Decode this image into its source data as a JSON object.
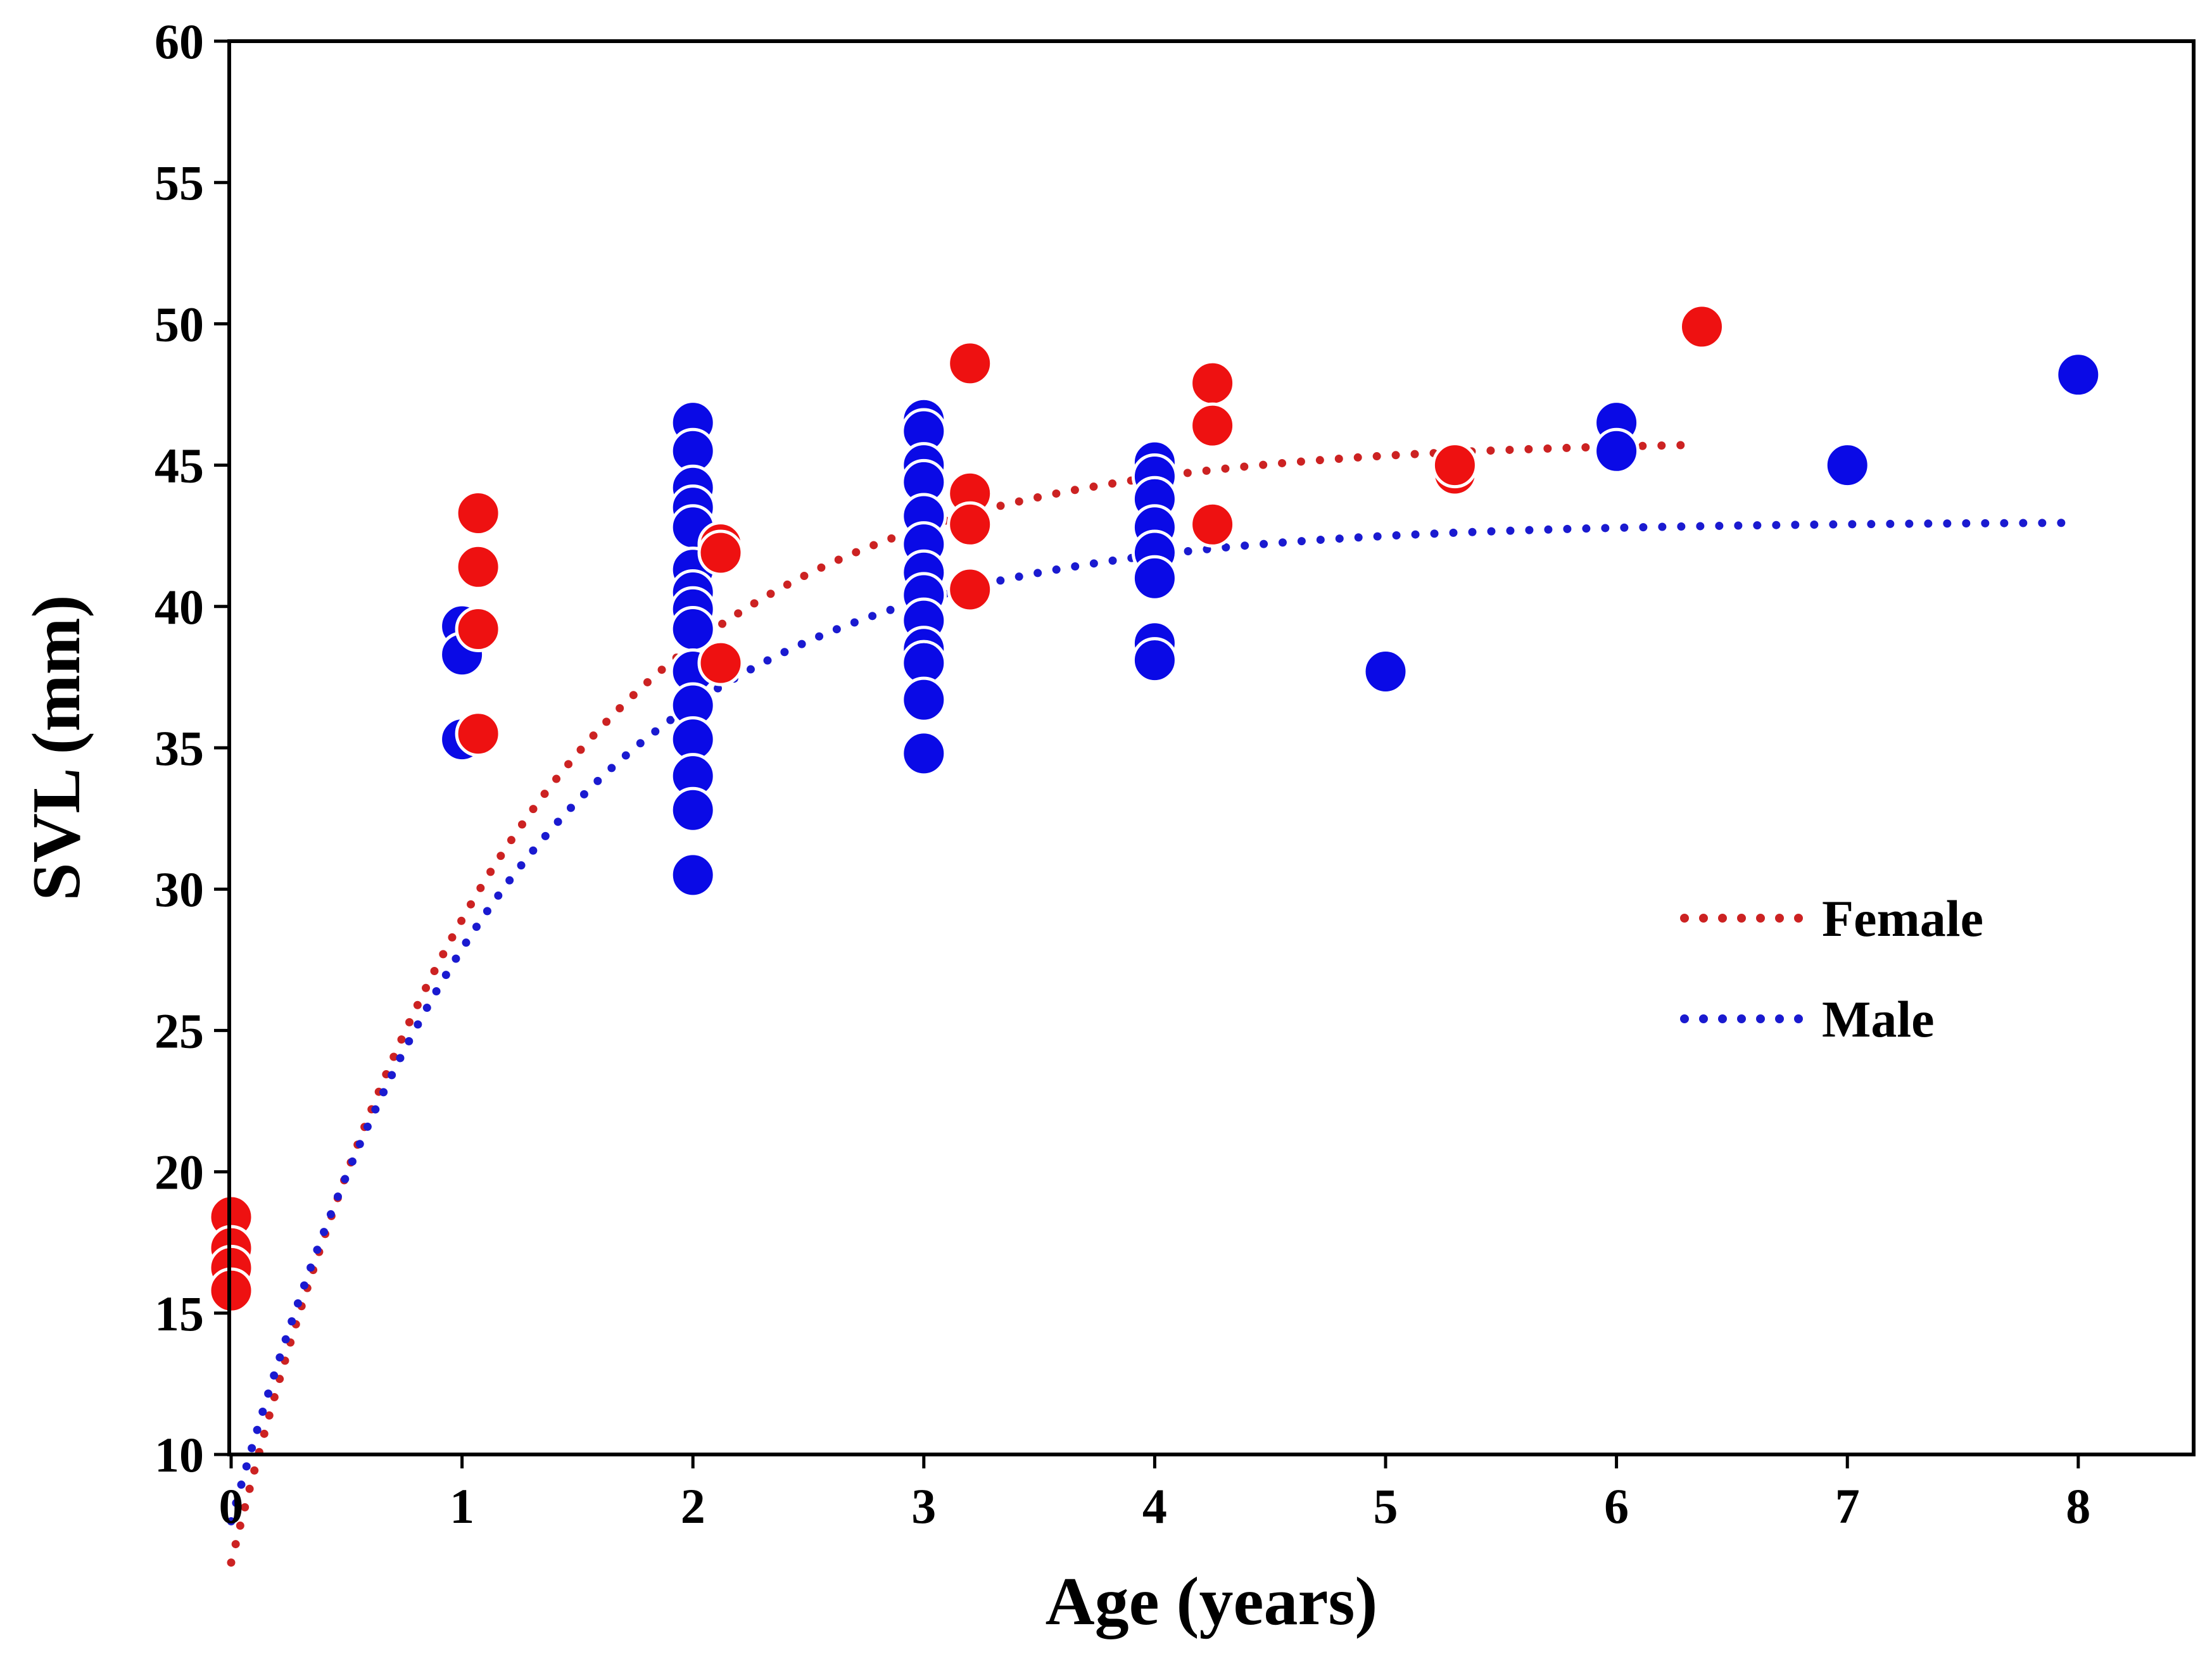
{
  "chart_data": {
    "type": "scatter",
    "title": "",
    "xlabel": "Age (years)",
    "ylabel": "SVL (mm)",
    "xlim": [
      0,
      8.5
    ],
    "ylim": [
      10,
      60
    ],
    "xticks": [
      0,
      1,
      2,
      3,
      4,
      5,
      6,
      7,
      8
    ],
    "yticks": [
      10,
      15,
      20,
      25,
      30,
      35,
      40,
      45,
      50,
      55,
      60
    ],
    "grid": false,
    "legend_position": "right",
    "series": [
      {
        "name": "Female",
        "color": "#ee1111",
        "curve_color": "#cc2222",
        "points": [
          {
            "x": 0,
            "y": 18.4
          },
          {
            "x": 0,
            "y": 17.3
          },
          {
            "x": 0,
            "y": 16.6
          },
          {
            "x": 0,
            "y": 15.8
          },
          {
            "x": 1.07,
            "y": 43.3
          },
          {
            "x": 1.07,
            "y": 41.4
          },
          {
            "x": 1.07,
            "y": 39.2
          },
          {
            "x": 1.07,
            "y": 35.5
          },
          {
            "x": 2.12,
            "y": 42.2
          },
          {
            "x": 2.12,
            "y": 41.9
          },
          {
            "x": 2.12,
            "y": 38.0
          },
          {
            "x": 3.2,
            "y": 48.6
          },
          {
            "x": 3.2,
            "y": 44.0
          },
          {
            "x": 3.2,
            "y": 42.9
          },
          {
            "x": 3.2,
            "y": 40.6
          },
          {
            "x": 4.25,
            "y": 47.9
          },
          {
            "x": 4.25,
            "y": 46.4
          },
          {
            "x": 4.25,
            "y": 42.9
          },
          {
            "x": 5.3,
            "y": 44.7
          },
          {
            "x": 5.3,
            "y": 45.0
          },
          {
            "x": 6.37,
            "y": 49.9
          }
        ],
        "curve": {
          "model": "von Bertalanffy",
          "asymptote": 45.9,
          "k": 0.85,
          "t0": -0.17,
          "x_end": 6.3
        }
      },
      {
        "name": "Male",
        "color": "#0a0ae6",
        "curve_color": "#1a1ad0",
        "points": [
          {
            "x": 1,
            "y": 39.3
          },
          {
            "x": 1,
            "y": 38.3
          },
          {
            "x": 1,
            "y": 35.3
          },
          {
            "x": 2,
            "y": 46.5
          },
          {
            "x": 2,
            "y": 45.5
          },
          {
            "x": 2,
            "y": 44.2
          },
          {
            "x": 2,
            "y": 43.5
          },
          {
            "x": 2,
            "y": 42.8
          },
          {
            "x": 2,
            "y": 41.3
          },
          {
            "x": 2,
            "y": 40.5
          },
          {
            "x": 2,
            "y": 39.9
          },
          {
            "x": 2,
            "y": 39.2
          },
          {
            "x": 2,
            "y": 37.7
          },
          {
            "x": 2,
            "y": 36.5
          },
          {
            "x": 2,
            "y": 35.3
          },
          {
            "x": 2,
            "y": 34.0
          },
          {
            "x": 2,
            "y": 32.8
          },
          {
            "x": 2,
            "y": 30.5
          },
          {
            "x": 3,
            "y": 46.6
          },
          {
            "x": 3,
            "y": 46.2
          },
          {
            "x": 3,
            "y": 45.0
          },
          {
            "x": 3,
            "y": 44.4
          },
          {
            "x": 3,
            "y": 43.2
          },
          {
            "x": 3,
            "y": 42.2
          },
          {
            "x": 3,
            "y": 41.2
          },
          {
            "x": 3,
            "y": 40.4
          },
          {
            "x": 3,
            "y": 39.5
          },
          {
            "x": 3,
            "y": 38.5
          },
          {
            "x": 3,
            "y": 38.0
          },
          {
            "x": 3,
            "y": 36.7
          },
          {
            "x": 3,
            "y": 34.8
          },
          {
            "x": 4,
            "y": 45.1
          },
          {
            "x": 4,
            "y": 44.6
          },
          {
            "x": 4,
            "y": 43.8
          },
          {
            "x": 4,
            "y": 42.8
          },
          {
            "x": 4,
            "y": 41.9
          },
          {
            "x": 4,
            "y": 41.0
          },
          {
            "x": 4,
            "y": 38.7
          },
          {
            "x": 4,
            "y": 38.1
          },
          {
            "x": 5,
            "y": 37.7
          },
          {
            "x": 6,
            "y": 46.5
          },
          {
            "x": 6,
            "y": 45.5
          },
          {
            "x": 7,
            "y": 45.0
          },
          {
            "x": 8,
            "y": 48.2
          }
        ],
        "curve": {
          "model": "von Bertalanffy",
          "asymptote": 43.0,
          "k": 0.85,
          "t0": -0.23,
          "x_end": 8.0
        }
      }
    ]
  }
}
